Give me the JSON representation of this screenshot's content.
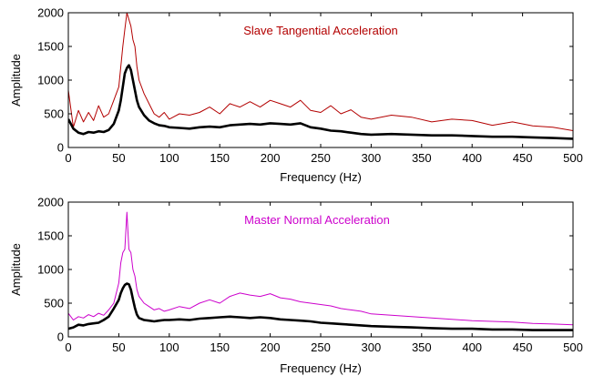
{
  "chart_data": [
    {
      "type": "line",
      "title": "Slave Tangential Acceleration",
      "xlabel": "Frequency (Hz)",
      "ylabel": "Amplitude",
      "xlim": [
        0,
        500
      ],
      "ylim": [
        0,
        2000
      ],
      "xticks": [
        "0",
        "50",
        "100",
        "150",
        "200",
        "250",
        "300",
        "350",
        "400",
        "450",
        "500"
      ],
      "yticks": [
        "0",
        "500",
        "1000",
        "1500",
        "2000"
      ],
      "grid": false,
      "series": [
        {
          "role": "raw spectrum",
          "color": "#b30000",
          "x": [
            0,
            5,
            10,
            15,
            20,
            25,
            30,
            35,
            40,
            45,
            50,
            52,
            54,
            56,
            58,
            60,
            62,
            64,
            66,
            68,
            70,
            75,
            80,
            85,
            90,
            95,
            100,
            110,
            120,
            130,
            140,
            150,
            160,
            170,
            180,
            190,
            200,
            210,
            220,
            230,
            240,
            250,
            260,
            270,
            280,
            290,
            300,
            320,
            340,
            360,
            380,
            400,
            420,
            440,
            460,
            480,
            500
          ],
          "values": [
            850,
            300,
            550,
            380,
            520,
            400,
            620,
            450,
            500,
            700,
            900,
            1200,
            1500,
            1750,
            2000,
            1900,
            1800,
            1600,
            1500,
            1200,
            1000,
            800,
            650,
            500,
            450,
            520,
            420,
            500,
            480,
            520,
            600,
            500,
            650,
            600,
            680,
            600,
            700,
            650,
            600,
            700,
            550,
            520,
            620,
            500,
            560,
            450,
            420,
            480,
            450,
            380,
            420,
            400,
            330,
            380,
            320,
            300,
            250
          ]
        },
        {
          "role": "smoothed spectrum",
          "color": "#000000",
          "x": [
            0,
            5,
            10,
            15,
            20,
            25,
            30,
            35,
            40,
            45,
            50,
            52,
            54,
            56,
            58,
            60,
            62,
            64,
            66,
            68,
            70,
            75,
            80,
            85,
            90,
            95,
            100,
            110,
            120,
            130,
            140,
            150,
            160,
            170,
            180,
            190,
            200,
            210,
            220,
            230,
            240,
            250,
            260,
            270,
            280,
            290,
            300,
            320,
            340,
            360,
            380,
            400,
            420,
            440,
            460,
            480,
            500
          ],
          "values": [
            420,
            280,
            220,
            200,
            230,
            220,
            240,
            230,
            260,
            350,
            550,
            700,
            900,
            1100,
            1180,
            1220,
            1150,
            1000,
            850,
            700,
            600,
            480,
            400,
            360,
            330,
            320,
            300,
            290,
            280,
            300,
            310,
            300,
            330,
            340,
            350,
            340,
            360,
            350,
            340,
            360,
            300,
            280,
            250,
            240,
            220,
            200,
            190,
            200,
            190,
            180,
            180,
            170,
            160,
            160,
            150,
            140,
            130
          ]
        }
      ]
    },
    {
      "type": "line",
      "title": "Master Normal Acceleration",
      "xlabel": "Frequency (Hz)",
      "ylabel": "Amplitude",
      "xlim": [
        0,
        500
      ],
      "ylim": [
        0,
        2000
      ],
      "xticks": [
        "0",
        "50",
        "100",
        "150",
        "200",
        "250",
        "300",
        "350",
        "400",
        "450",
        "500"
      ],
      "yticks": [
        "0",
        "500",
        "1000",
        "1500",
        "2000"
      ],
      "grid": false,
      "series": [
        {
          "role": "raw spectrum",
          "color": "#cc00cc",
          "x": [
            0,
            5,
            10,
            15,
            20,
            25,
            30,
            35,
            40,
            45,
            50,
            52,
            54,
            56,
            58,
            60,
            62,
            64,
            66,
            68,
            70,
            75,
            80,
            85,
            90,
            95,
            100,
            110,
            120,
            130,
            140,
            150,
            160,
            170,
            180,
            190,
            200,
            210,
            220,
            230,
            240,
            250,
            260,
            270,
            280,
            290,
            300,
            320,
            340,
            360,
            380,
            400,
            420,
            440,
            460,
            480,
            500
          ],
          "values": [
            350,
            250,
            300,
            280,
            330,
            300,
            350,
            320,
            400,
            500,
            800,
            1100,
            1250,
            1300,
            1850,
            1300,
            1250,
            1000,
            900,
            700,
            600,
            500,
            450,
            400,
            420,
            380,
            400,
            450,
            420,
            500,
            550,
            500,
            600,
            650,
            620,
            600,
            640,
            580,
            560,
            520,
            500,
            480,
            460,
            420,
            400,
            380,
            340,
            320,
            300,
            280,
            260,
            240,
            230,
            220,
            200,
            190,
            180
          ]
        },
        {
          "role": "smoothed spectrum",
          "color": "#000000",
          "x": [
            0,
            5,
            10,
            15,
            20,
            25,
            30,
            35,
            40,
            45,
            50,
            52,
            54,
            56,
            58,
            60,
            62,
            64,
            66,
            68,
            70,
            75,
            80,
            85,
            90,
            95,
            100,
            110,
            120,
            130,
            140,
            150,
            160,
            170,
            180,
            190,
            200,
            210,
            220,
            230,
            240,
            250,
            260,
            270,
            280,
            290,
            300,
            320,
            340,
            360,
            380,
            400,
            420,
            440,
            460,
            480,
            500
          ],
          "values": [
            120,
            140,
            180,
            170,
            190,
            200,
            210,
            250,
            300,
            420,
            550,
            650,
            720,
            770,
            790,
            780,
            700,
            560,
            430,
            330,
            280,
            250,
            240,
            230,
            240,
            250,
            250,
            260,
            250,
            270,
            280,
            290,
            300,
            290,
            280,
            290,
            280,
            260,
            250,
            240,
            230,
            210,
            200,
            190,
            180,
            170,
            160,
            150,
            140,
            130,
            120,
            120,
            110,
            110,
            100,
            100,
            100
          ]
        }
      ]
    }
  ]
}
